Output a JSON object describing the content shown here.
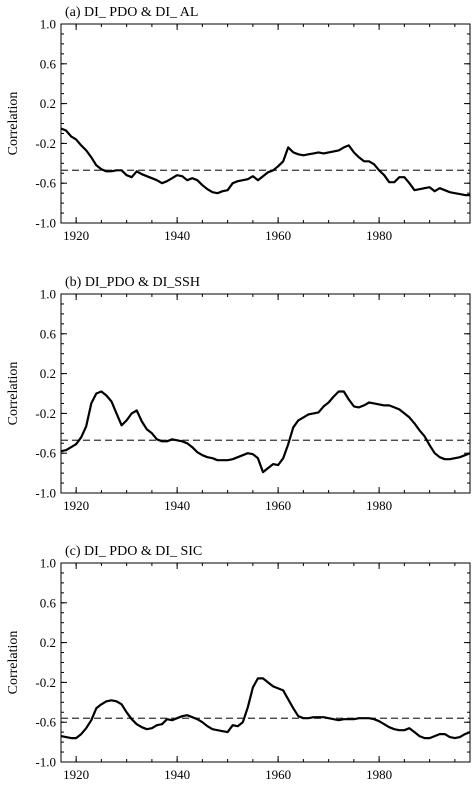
{
  "chart_data": [
    {
      "type": "line",
      "title": "(a) DI_ PDO & DI_ AL",
      "ylabel": "Correlation",
      "xlabel": "",
      "xlim": [
        1917,
        1998
      ],
      "ylim": [
        -1.0,
        1.0
      ],
      "xticks": [
        1920,
        1940,
        1960,
        1980
      ],
      "yticks": [
        1.0,
        0.6,
        0.2,
        -0.2,
        -0.6,
        -1.0
      ],
      "yticklabels": [
        "1.0",
        "0.6",
        "0.2",
        "-0.2",
        "-0.6",
        "-1.0"
      ],
      "threshold": -0.47,
      "series": [
        {
          "x": [
            1917,
            1918,
            1919,
            1920,
            1921,
            1922,
            1923,
            1924,
            1925,
            1926,
            1927,
            1928,
            1929,
            1930,
            1931,
            1932,
            1933,
            1934,
            1935,
            1936,
            1937,
            1938,
            1939,
            1940,
            1941,
            1942,
            1943,
            1944,
            1945,
            1946,
            1947,
            1948,
            1949,
            1950,
            1951,
            1952,
            1953,
            1954,
            1955,
            1956,
            1957,
            1958,
            1959,
            1960,
            1961,
            1962,
            1963,
            1964,
            1965,
            1966,
            1967,
            1968,
            1969,
            1970,
            1971,
            1972,
            1973,
            1974,
            1975,
            1976,
            1977,
            1978,
            1979,
            1980,
            1981,
            1982,
            1983,
            1984,
            1985,
            1986,
            1987,
            1988,
            1989,
            1990,
            1991,
            1992,
            1993,
            1994,
            1995,
            1996,
            1997,
            1998
          ],
          "values": [
            -0.05,
            -0.07,
            -0.13,
            -0.16,
            -0.22,
            -0.27,
            -0.34,
            -0.42,
            -0.46,
            -0.48,
            -0.48,
            -0.47,
            -0.47,
            -0.52,
            -0.54,
            -0.48,
            -0.51,
            -0.53,
            -0.55,
            -0.57,
            -0.6,
            -0.58,
            -0.55,
            -0.52,
            -0.53,
            -0.57,
            -0.55,
            -0.57,
            -0.62,
            -0.66,
            -0.69,
            -0.7,
            -0.68,
            -0.67,
            -0.6,
            -0.58,
            -0.57,
            -0.56,
            -0.53,
            -0.57,
            -0.53,
            -0.49,
            -0.47,
            -0.43,
            -0.38,
            -0.24,
            -0.29,
            -0.31,
            -0.32,
            -0.31,
            -0.3,
            -0.29,
            -0.3,
            -0.29,
            -0.28,
            -0.27,
            -0.24,
            -0.22,
            -0.29,
            -0.34,
            -0.38,
            -0.38,
            -0.41,
            -0.47,
            -0.52,
            -0.59,
            -0.59,
            -0.54,
            -0.54,
            -0.6,
            -0.67,
            -0.66,
            -0.65,
            -0.64,
            -0.68,
            -0.65,
            -0.67,
            -0.69,
            -0.7,
            -0.71,
            -0.72,
            -0.72
          ]
        }
      ]
    },
    {
      "type": "line",
      "title": "(b) DI_PDO & DI_SSH",
      "ylabel": "Correlation",
      "xlabel": "",
      "xlim": [
        1917,
        1998
      ],
      "ylim": [
        -1.0,
        1.0
      ],
      "xticks": [
        1920,
        1940,
        1960,
        1980
      ],
      "yticks": [
        1.0,
        0.6,
        0.2,
        -0.2,
        -0.6,
        -1.0
      ],
      "yticklabels": [
        "1.0",
        "0.6",
        "0.2",
        "-0.2",
        "-0.6",
        "-1.0"
      ],
      "threshold": -0.47,
      "series": [
        {
          "x": [
            1917,
            1918,
            1919,
            1920,
            1921,
            1922,
            1923,
            1924,
            1925,
            1926,
            1927,
            1928,
            1929,
            1930,
            1931,
            1932,
            1933,
            1934,
            1935,
            1936,
            1937,
            1938,
            1939,
            1940,
            1941,
            1942,
            1943,
            1944,
            1945,
            1946,
            1947,
            1948,
            1949,
            1950,
            1951,
            1952,
            1953,
            1954,
            1955,
            1956,
            1957,
            1958,
            1959,
            1960,
            1961,
            1962,
            1963,
            1964,
            1965,
            1966,
            1967,
            1968,
            1969,
            1970,
            1971,
            1972,
            1973,
            1974,
            1975,
            1976,
            1977,
            1978,
            1979,
            1980,
            1981,
            1982,
            1983,
            1984,
            1985,
            1986,
            1987,
            1988,
            1989,
            1990,
            1991,
            1992,
            1993,
            1994,
            1995,
            1996,
            1997,
            1998
          ],
          "values": [
            -0.58,
            -0.57,
            -0.54,
            -0.51,
            -0.44,
            -0.33,
            -0.1,
            0.0,
            0.02,
            -0.02,
            -0.08,
            -0.2,
            -0.32,
            -0.27,
            -0.2,
            -0.17,
            -0.28,
            -0.36,
            -0.4,
            -0.46,
            -0.48,
            -0.48,
            -0.46,
            -0.47,
            -0.48,
            -0.5,
            -0.54,
            -0.59,
            -0.62,
            -0.64,
            -0.65,
            -0.67,
            -0.67,
            -0.67,
            -0.66,
            -0.64,
            -0.62,
            -0.6,
            -0.61,
            -0.65,
            -0.79,
            -0.75,
            -0.71,
            -0.72,
            -0.65,
            -0.51,
            -0.34,
            -0.27,
            -0.24,
            -0.21,
            -0.2,
            -0.19,
            -0.13,
            -0.09,
            -0.03,
            0.02,
            0.02,
            -0.06,
            -0.13,
            -0.14,
            -0.12,
            -0.09,
            -0.1,
            -0.11,
            -0.12,
            -0.12,
            -0.14,
            -0.16,
            -0.2,
            -0.24,
            -0.3,
            -0.37,
            -0.43,
            -0.52,
            -0.6,
            -0.64,
            -0.66,
            -0.66,
            -0.65,
            -0.64,
            -0.62,
            -0.6
          ]
        }
      ]
    },
    {
      "type": "line",
      "title": "(c) DI_ PDO & DI_ SIC",
      "ylabel": "Correlation",
      "xlabel": "",
      "xlim": [
        1917,
        1998
      ],
      "ylim": [
        -1.0,
        1.0
      ],
      "xticks": [
        1920,
        1940,
        1960,
        1980
      ],
      "yticks": [
        1.0,
        0.6,
        0.2,
        -0.2,
        -0.6,
        -1.0
      ],
      "yticklabels": [
        "1.0",
        "0.6",
        "0.2",
        "-0.2",
        "-0.6",
        "-1.0"
      ],
      "threshold": -0.56,
      "series": [
        {
          "x": [
            1917,
            1918,
            1919,
            1920,
            1921,
            1922,
            1923,
            1924,
            1925,
            1926,
            1927,
            1928,
            1929,
            1930,
            1931,
            1932,
            1933,
            1934,
            1935,
            1936,
            1937,
            1938,
            1939,
            1940,
            1941,
            1942,
            1943,
            1944,
            1945,
            1946,
            1947,
            1948,
            1949,
            1950,
            1951,
            1952,
            1953,
            1954,
            1955,
            1956,
            1957,
            1958,
            1959,
            1960,
            1961,
            1962,
            1963,
            1964,
            1965,
            1966,
            1967,
            1968,
            1969,
            1970,
            1971,
            1972,
            1973,
            1974,
            1975,
            1976,
            1977,
            1978,
            1979,
            1980,
            1981,
            1982,
            1983,
            1984,
            1985,
            1986,
            1987,
            1988,
            1989,
            1990,
            1991,
            1992,
            1993,
            1994,
            1995,
            1996,
            1997,
            1998
          ],
          "values": [
            -0.74,
            -0.75,
            -0.76,
            -0.76,
            -0.72,
            -0.66,
            -0.58,
            -0.46,
            -0.42,
            -0.39,
            -0.38,
            -0.39,
            -0.42,
            -0.5,
            -0.57,
            -0.62,
            -0.65,
            -0.67,
            -0.66,
            -0.63,
            -0.62,
            -0.57,
            -0.58,
            -0.56,
            -0.54,
            -0.53,
            -0.55,
            -0.57,
            -0.6,
            -0.64,
            -0.67,
            -0.68,
            -0.69,
            -0.7,
            -0.63,
            -0.64,
            -0.6,
            -0.45,
            -0.25,
            -0.16,
            -0.16,
            -0.2,
            -0.24,
            -0.26,
            -0.28,
            -0.37,
            -0.46,
            -0.54,
            -0.56,
            -0.56,
            -0.55,
            -0.55,
            -0.55,
            -0.56,
            -0.57,
            -0.58,
            -0.57,
            -0.57,
            -0.57,
            -0.56,
            -0.56,
            -0.56,
            -0.57,
            -0.59,
            -0.62,
            -0.65,
            -0.67,
            -0.68,
            -0.68,
            -0.66,
            -0.7,
            -0.74,
            -0.76,
            -0.76,
            -0.74,
            -0.72,
            -0.72,
            -0.75,
            -0.76,
            -0.75,
            -0.72,
            -0.7
          ]
        }
      ]
    }
  ]
}
